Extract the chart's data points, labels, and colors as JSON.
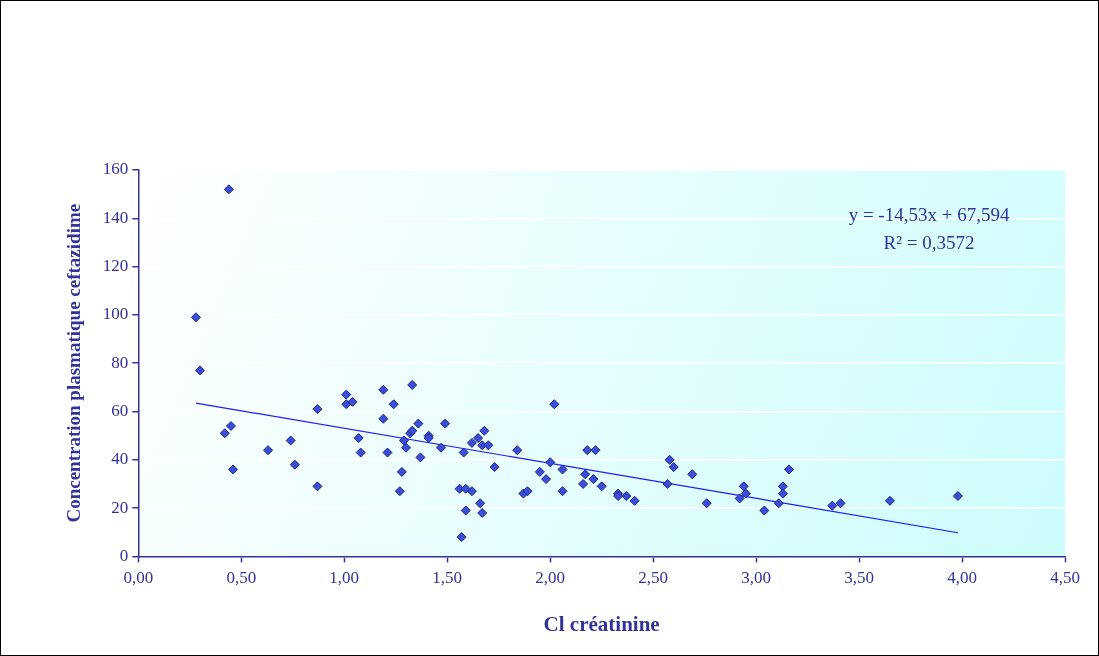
{
  "chart_data": {
    "type": "scatter",
    "xlabel": "Cl créatinine",
    "ylabel": "Concentration plasmatique ceftazidime",
    "annotations": [
      "y = -14,53x + 67,594",
      "R² = 0,3572"
    ],
    "xlim": [
      0,
      4.5
    ],
    "xticks": [
      {
        "value": 0,
        "label": "0,00"
      },
      {
        "value": 0.5,
        "label": "0,50"
      },
      {
        "value": 1,
        "label": "1,00"
      },
      {
        "value": 1.5,
        "label": "1,50"
      },
      {
        "value": 2,
        "label": "2,00"
      },
      {
        "value": 2.5,
        "label": "2,50"
      },
      {
        "value": 3,
        "label": "3,00"
      },
      {
        "value": 3.5,
        "label": "3,50"
      },
      {
        "value": 4,
        "label": "4,00"
      },
      {
        "value": 4.5,
        "label": "4,50"
      }
    ],
    "ylim": [
      0,
      160
    ],
    "yticks": [
      0,
      20,
      40,
      60,
      80,
      100,
      120,
      140,
      160
    ],
    "grid": "y",
    "legend": false,
    "series": [
      {
        "type": "scatter",
        "marker": "diamond",
        "color": "#3a4fd8",
        "x": [
          0.28,
          0.3,
          0.44,
          0.42,
          0.45,
          0.46,
          0.63,
          0.74,
          0.76,
          0.87,
          0.87,
          1.01,
          1.01,
          1.04,
          1.07,
          1.08,
          1.19,
          1.19,
          1.21,
          1.24,
          1.28,
          1.27,
          1.29,
          1.3,
          1.33,
          1.32,
          1.33,
          1.36,
          1.37,
          1.41,
          1.41,
          1.47,
          1.49,
          1.56,
          1.57,
          1.59,
          1.59,
          1.58,
          1.62,
          1.62,
          1.65,
          1.66,
          1.67,
          1.67,
          1.68,
          1.7,
          1.73,
          1.84,
          1.87,
          1.89,
          1.95,
          1.98,
          2.0,
          2.02,
          2.06,
          2.06,
          2.16,
          2.17,
          2.18,
          2.21,
          2.22,
          2.25,
          2.33,
          2.33,
          2.37,
          2.41,
          2.57,
          2.58,
          2.6,
          2.69,
          2.76,
          2.92,
          2.94,
          2.95,
          3.04,
          3.11,
          3.13,
          3.13,
          3.16,
          3.37,
          3.41,
          3.65,
          3.98
        ],
        "values": [
          99,
          77,
          152,
          51,
          54,
          36,
          44,
          48,
          38,
          61,
          29,
          67,
          63,
          64,
          49,
          43,
          69,
          57,
          43,
          63,
          35,
          27,
          48,
          45,
          71,
          51,
          52,
          55,
          41,
          50,
          49,
          45,
          55,
          28,
          8,
          28,
          19,
          43,
          27,
          47,
          49,
          22,
          18,
          46,
          52,
          46,
          37,
          44,
          26,
          27,
          35,
          32,
          39,
          63,
          36,
          27,
          30,
          34,
          44,
          32,
          44,
          29,
          26,
          25,
          25,
          23,
          30,
          40,
          37,
          34,
          22,
          24,
          29,
          26,
          19,
          22,
          29,
          26,
          36,
          21,
          22,
          23,
          25
        ]
      },
      {
        "type": "line",
        "marker": "none",
        "color": "#1a1aff",
        "x": [
          0.28,
          3.98
        ],
        "values": [
          63.5,
          9.8
        ]
      }
    ]
  }
}
